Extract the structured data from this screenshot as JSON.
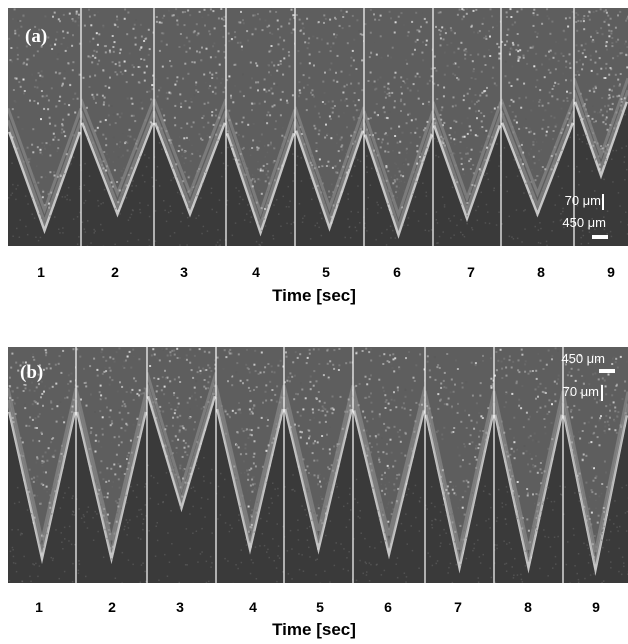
{
  "panel_a": {
    "label": "(a)",
    "scale_vertical": "70 μm",
    "scale_horizontal": "450 μm",
    "frames": [
      "1",
      "2",
      "3",
      "4",
      "5",
      "6",
      "7",
      "8",
      "9"
    ],
    "axis_label": "Time [sec]",
    "tip_depth": [
      0.95,
      0.88,
      0.88,
      0.96,
      0.94,
      0.97,
      0.9,
      0.88,
      0.72
    ]
  },
  "panel_b": {
    "label": "(b)",
    "scale_horizontal": "450 μm",
    "scale_vertical": "70 μm",
    "frames": [
      "1",
      "2",
      "3",
      "4",
      "5",
      "6",
      "7",
      "8",
      "9"
    ],
    "axis_label": "Time [sec]",
    "tip_depth": [
      0.92,
      0.92,
      0.7,
      0.88,
      0.88,
      0.9,
      0.96,
      0.96,
      0.97
    ]
  }
}
